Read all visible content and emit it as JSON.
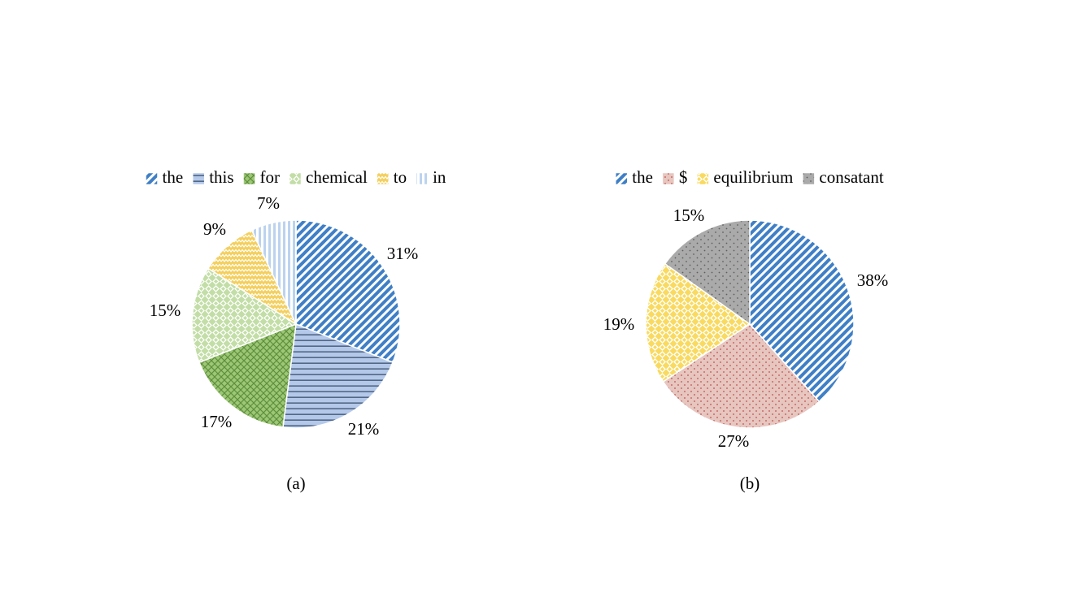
{
  "chart_data": [
    {
      "type": "pie",
      "caption": "(a)",
      "legend_position": "top",
      "start_angle_deg": 0,
      "direction": "clockwise",
      "slices": [
        {
          "label": "the",
          "value": 31,
          "display": "31%",
          "color": "#4a86c8",
          "pattern": "diagonal"
        },
        {
          "label": "this",
          "value": 21,
          "display": "21%",
          "color": "#aac3e8",
          "pattern": "horizontal"
        },
        {
          "label": "for",
          "value": 17,
          "display": "17%",
          "color": "#8fbf63",
          "pattern": "crosshatch"
        },
        {
          "label": "chemical",
          "value": 15,
          "display": "15%",
          "color": "#b9d99a",
          "pattern": "diamond"
        },
        {
          "label": "to",
          "value": 9,
          "display": "9%",
          "color": "#f2c94c",
          "pattern": "zigzag"
        },
        {
          "label": "in",
          "value": 7,
          "display": "7%",
          "color": "#bdd4ef",
          "pattern": "vertical"
        }
      ]
    },
    {
      "type": "pie",
      "caption": "(b)",
      "legend_position": "top",
      "start_angle_deg": 0,
      "direction": "clockwise",
      "slices": [
        {
          "label": "the",
          "value": 38,
          "display": "38%",
          "color": "#4a86c8",
          "pattern": "diagonal"
        },
        {
          "label": "$",
          "value": 27,
          "display": "27%",
          "color": "#e8c3bd",
          "pattern": "dots-red"
        },
        {
          "label": "equilibrium",
          "value": 19,
          "display": "19%",
          "color": "#f7d75a",
          "pattern": "diamond-yellow"
        },
        {
          "label": "consatant",
          "value": 15,
          "display": "15%",
          "color": "#a6a6a6",
          "pattern": "dots-grey"
        }
      ]
    }
  ]
}
